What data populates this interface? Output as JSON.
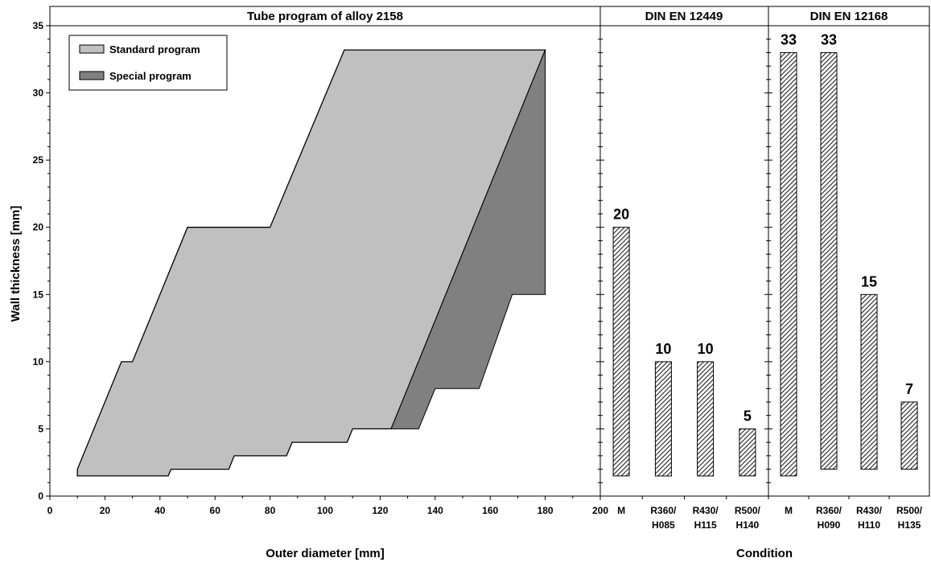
{
  "chart_data": [
    {
      "type": "area",
      "title": "Tube program of alloy 2158",
      "xlabel": "Outer diameter [mm]",
      "ylabel": "Wall thickness [mm]",
      "xlim": [
        0,
        200
      ],
      "ylim": [
        0,
        35
      ],
      "x_ticks": [
        "0",
        "20",
        "40",
        "60",
        "80",
        "100",
        "120",
        "140",
        "160",
        "180",
        "200"
      ],
      "y_ticks": [
        "0",
        "5",
        "10",
        "15",
        "20",
        "25",
        "30",
        "35"
      ],
      "grid": false,
      "legend_position": "top-left",
      "series": [
        {
          "name": "Standard program",
          "color": "#c0c0c0",
          "polygon": [
            [
              10,
              1.5
            ],
            [
              43,
              1.5
            ],
            [
              44,
              2
            ],
            [
              65,
              2
            ],
            [
              67,
              3
            ],
            [
              86,
              3
            ],
            [
              88,
              4
            ],
            [
              108,
              4
            ],
            [
              110,
              5
            ],
            [
              124,
              5
            ],
            [
              180,
              33.2
            ],
            [
              107,
              33.2
            ],
            [
              80,
              20
            ],
            [
              50,
              20
            ],
            [
              30,
              10
            ],
            [
              26,
              10
            ],
            [
              10,
              2
            ]
          ]
        },
        {
          "name": "Special program",
          "color": "#808080",
          "polygon": [
            [
              124,
              5
            ],
            [
              134,
              5
            ],
            [
              140,
              8
            ],
            [
              156,
              8
            ],
            [
              168,
              15
            ],
            [
              180,
              15
            ],
            [
              180,
              33.2
            ]
          ]
        }
      ]
    },
    {
      "type": "bar",
      "title": "DIN EN 12449",
      "categories": [
        "M",
        "R360/\nH085",
        "R430/\nH115",
        "R500/\nH140"
      ],
      "values": [
        20,
        10,
        10,
        5
      ],
      "base": [
        1.5,
        1.5,
        1.5,
        1.5
      ],
      "ylim": [
        0,
        35
      ],
      "fill": "hatched",
      "color": "#333333"
    },
    {
      "type": "bar",
      "title": "DIN EN 12168",
      "categories": [
        "M",
        "R360/\nH090",
        "R430/\nH110",
        "R500/\nH135"
      ],
      "values": [
        33,
        33,
        15,
        7
      ],
      "base": [
        1.5,
        2,
        2,
        2
      ],
      "ylim": [
        0,
        35
      ],
      "fill": "hatched",
      "color": "#333333"
    }
  ],
  "shared": {
    "x2_label": "Condition",
    "x2_start_tick": "200"
  }
}
